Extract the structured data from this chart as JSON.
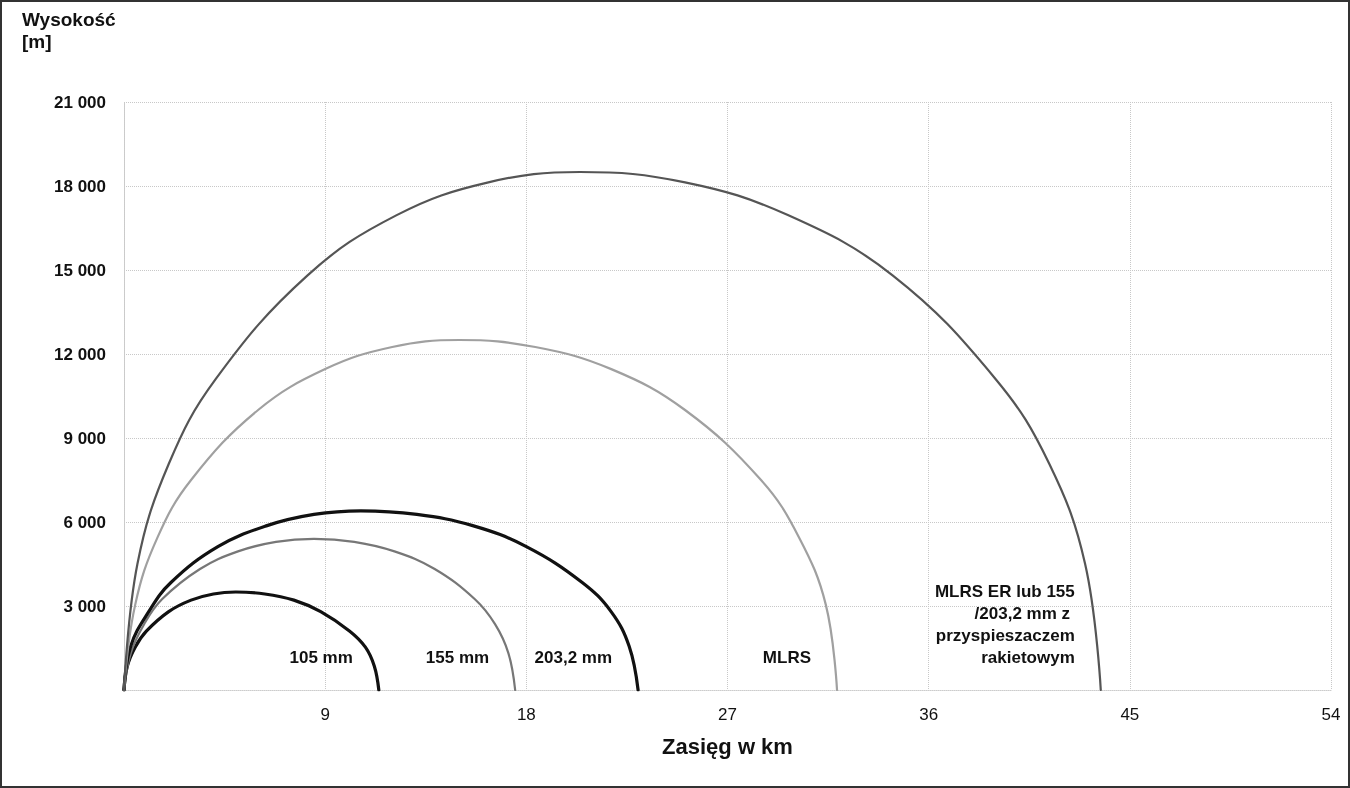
{
  "chart_data": {
    "type": "line",
    "xlabel": "Zasięg w km",
    "ylabel": "Wysokość [m]",
    "xlim": [
      0,
      54
    ],
    "xticks": [
      {
        "value": 0,
        "label": null
      },
      9,
      18,
      27,
      36,
      45,
      54
    ],
    "ylim": [
      0,
      21000
    ],
    "yticks": [
      {
        "value": 0,
        "label": null
      },
      {
        "value": 3000,
        "label": "3 000"
      },
      {
        "value": 6000,
        "label": "6 000"
      },
      {
        "value": 9000,
        "label": "9 000"
      },
      {
        "value": 12000,
        "label": "12 000"
      },
      {
        "value": 15000,
        "label": "15 000"
      },
      {
        "value": 18000,
        "label": "18 000"
      },
      {
        "value": 21000,
        "label": "21 000"
      }
    ],
    "grid": true,
    "legend": false,
    "marker": "none",
    "line_style": "solid",
    "series": [
      {
        "name": "105 mm",
        "color": "#111111",
        "x": [
          0,
          0.15,
          0.5,
          1.0,
          2.0,
          3.0,
          4.0,
          5.0,
          6.3,
          7.6,
          8.8,
          10.1,
          10.8,
          11.2,
          11.4
        ],
        "values": [
          0,
          850,
          1530,
          2100,
          2800,
          3210,
          3430,
          3500,
          3430,
          3210,
          2800,
          2100,
          1530,
          850,
          0
        ]
      },
      {
        "name": "155 mm",
        "color": "#777777",
        "x": [
          0,
          0.3,
          0.9,
          1.7,
          3.4,
          5.1,
          6.8,
          8.5,
          10.3,
          12.1,
          13.9,
          15.7,
          16.6,
          17.2,
          17.5
        ],
        "values": [
          0,
          1310,
          2350,
          3240,
          4320,
          4950,
          5290,
          5400,
          5290,
          4950,
          4320,
          3240,
          2350,
          1310,
          0
        ]
      },
      {
        "name": "203,2 mm",
        "color": "#111111",
        "x": [
          0,
          0.3,
          1.1,
          2.1,
          4.2,
          6.4,
          8.5,
          10.6,
          13.1,
          15.6,
          18.0,
          20.5,
          21.8,
          22.6,
          23.0
        ],
        "values": [
          0,
          1560,
          2790,
          3840,
          5120,
          5870,
          6270,
          6400,
          6270,
          5870,
          5120,
          3840,
          2790,
          1560,
          0
        ]
      },
      {
        "name": "MLRS",
        "color": "#a0a0a0",
        "x": [
          0,
          0.5,
          1.5,
          3.0,
          6.0,
          9.0,
          12.0,
          15.0,
          18.4,
          21.8,
          25.1,
          28.5,
          30.2,
          31.4,
          31.9
        ],
        "values": [
          0,
          3040,
          5450,
          7500,
          10000,
          11460,
          12250,
          12500,
          12250,
          11460,
          10000,
          7500,
          5450,
          3040,
          0
        ]
      },
      {
        "name": "MLRS ER lub 155/203,2 mm z przyspieszaczem rakietowym",
        "color": "#555555",
        "x": [
          0,
          0.6,
          2.0,
          4.1,
          8.2,
          12.2,
          16.3,
          20.4,
          25.1,
          29.7,
          34.4,
          39.0,
          41.4,
          43.0,
          43.7
        ],
        "values": [
          0,
          4500,
          8070,
          11100,
          14800,
          16960,
          18130,
          18500,
          18130,
          16960,
          14800,
          11100,
          8070,
          4500,
          0
        ]
      }
    ]
  }
}
